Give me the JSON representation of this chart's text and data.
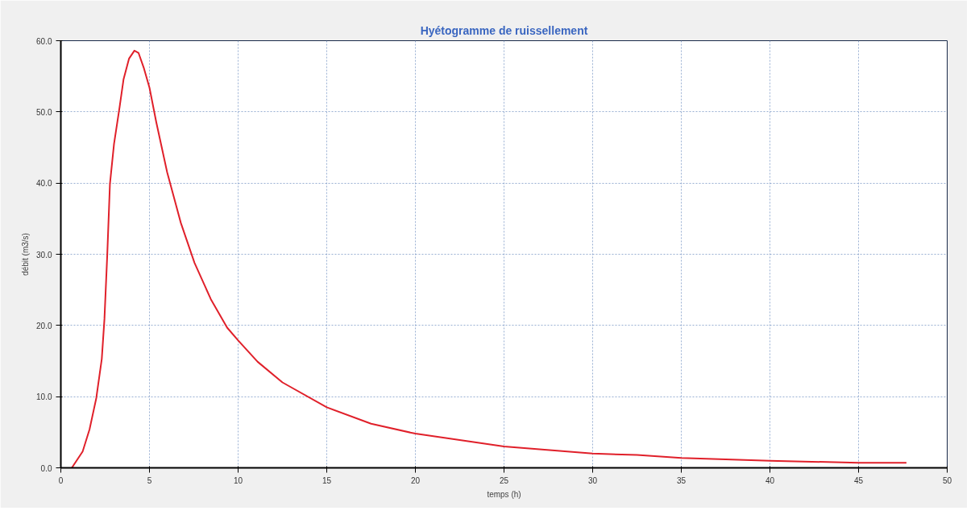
{
  "chart_data": {
    "type": "line",
    "title": "Hyétogramme de ruissellement",
    "xlabel": "temps (h)",
    "ylabel": "débit (m3/s)",
    "xlim": [
      0,
      50
    ],
    "xticks": [
      0,
      5,
      10,
      15,
      20,
      25,
      30,
      35,
      40,
      45,
      50
    ],
    "ylim": [
      0,
      60
    ],
    "yticks": [
      {
        "value": 0,
        "label": "0.0"
      },
      {
        "value": 10,
        "label": "10.0"
      },
      {
        "value": 20,
        "label": "20.0"
      },
      {
        "value": 30,
        "label": "30.0"
      },
      {
        "value": 40,
        "label": "40.0"
      },
      {
        "value": 50,
        "label": "50.0"
      },
      {
        "value": 60,
        "label": "60.0"
      }
    ],
    "grid": true,
    "marker": "none",
    "line_style": "solid",
    "series": [
      {
        "color": "#e0202a",
        "x": [
          0.62,
          1.23,
          1.62,
          2.0,
          2.31,
          2.46,
          2.62,
          2.77,
          3.0,
          3.31,
          3.54,
          3.85,
          4.15,
          4.38,
          4.69,
          5.0,
          5.38,
          6.0,
          6.77,
          7.54,
          8.46,
          9.38,
          10.0,
          11.1,
          12.5,
          15,
          17.5,
          20,
          25,
          30,
          32.5,
          35,
          40,
          45,
          47.7
        ],
        "values": [
          0,
          2.3,
          5.4,
          9.8,
          15.3,
          20.9,
          30.0,
          39.9,
          45.5,
          50.6,
          54.6,
          57.5,
          58.6,
          58.3,
          56.1,
          53.4,
          48.6,
          41.5,
          34.4,
          28.8,
          23.7,
          19.7,
          17.9,
          14.9,
          12.0,
          8.5,
          6.2,
          4.8,
          3.0,
          2.0,
          1.8,
          1.4,
          1.0,
          0.7,
          0.7
        ]
      }
    ]
  }
}
